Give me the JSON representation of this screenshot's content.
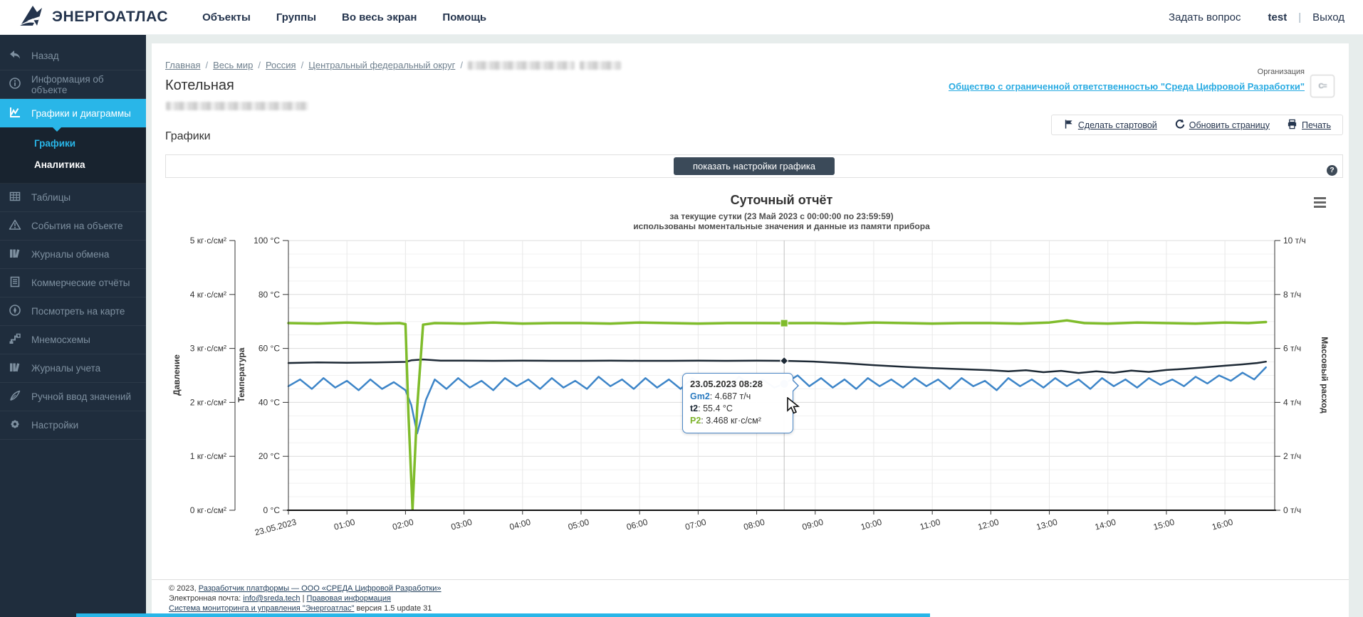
{
  "navbar": {
    "brand": "ЭНЕРГОАТЛАС",
    "menu": [
      {
        "label": "Объекты"
      },
      {
        "label": "Группы"
      },
      {
        "label": "Во весь экран"
      },
      {
        "label": "Помощь"
      }
    ],
    "right": {
      "ask": "Задать вопрос",
      "user": "test",
      "divider": "|",
      "logout": "Выход"
    }
  },
  "sidebar": {
    "items": [
      {
        "label": "Назад",
        "icon": "back-icon"
      },
      {
        "label": "Информация об объекте",
        "icon": "info-icon"
      },
      {
        "label": "Графики и диаграммы",
        "icon": "chart-icon",
        "active": true
      },
      {
        "label": "Таблицы",
        "icon": "table-icon"
      },
      {
        "label": "События на объекте",
        "icon": "warning-icon"
      },
      {
        "label": "Журналы обмена",
        "icon": "books-icon"
      },
      {
        "label": "Коммерческие отчёты",
        "icon": "report-icon"
      },
      {
        "label": "Посмотреть на карте",
        "icon": "compass-icon"
      },
      {
        "label": "Мнемосхемы",
        "icon": "mnemo-icon"
      },
      {
        "label": "Журналы учета",
        "icon": "books-icon"
      },
      {
        "label": "Ручной ввод значений",
        "icon": "pen-icon"
      },
      {
        "label": "Настройки",
        "icon": "gear-icon"
      }
    ],
    "submenu": [
      {
        "label": "Графики",
        "active": true
      },
      {
        "label": "Аналитика"
      }
    ]
  },
  "breadcrumbs": {
    "sep": "/",
    "links": [
      {
        "label": "Главная"
      },
      {
        "label": "Весь мир"
      },
      {
        "label": "Россия"
      },
      {
        "label": "Центральный федеральный округ"
      }
    ]
  },
  "header": {
    "title": "Котельная",
    "org_label": "Организация",
    "org_link": "Общество с ограниченной ответственностью \"Среда Цифровой Разработки\""
  },
  "toolbar": {
    "items": [
      {
        "label": "Сделать стартовой",
        "icon": "flag-icon"
      },
      {
        "label": "Обновить страницу",
        "icon": "refresh-icon"
      },
      {
        "label": "Печать",
        "icon": "print-icon"
      }
    ]
  },
  "graphs": {
    "section_title": "Графики",
    "settings_button": "показать настройки графика",
    "help": "?"
  },
  "chart_data": {
    "type": "line",
    "title": "Суточный отчёт",
    "subtitle1": "за текущие сутки (23 Май 2023 с 00:00:00 по 23:59:59)",
    "subtitle2": "использованы моментальные значения и данные из памяти прибора",
    "grid": true,
    "x_axis": {
      "date_label": "23.05.2023",
      "hour_labels": [
        "01:00",
        "02:00",
        "03:00",
        "04:00",
        "05:00",
        "06:00",
        "07:00",
        "08:00",
        "09:00",
        "10:00",
        "11:00",
        "12:00",
        "13:00",
        "14:00",
        "15:00",
        "16:00"
      ],
      "range_hours": [
        0,
        16.85
      ]
    },
    "y_axes": [
      {
        "id": "pressure",
        "title": "Давление",
        "unit": "кг·с/см²",
        "range": [
          0,
          5
        ],
        "side": "left-outer",
        "ticks": [
          "5 кг·с/см²",
          "4 кг·с/см²",
          "3 кг·с/см²",
          "2 кг·с/см²",
          "1 кг·с/см²",
          "0 кг·с/см²"
        ]
      },
      {
        "id": "temperature",
        "title": "Температура",
        "unit": "°C",
        "range": [
          0,
          100
        ],
        "side": "left",
        "ticks": [
          "100 °C",
          "80 °C",
          "60 °C",
          "40 °C",
          "20 °C",
          "0 °C"
        ]
      },
      {
        "id": "flow",
        "title": "Массовый расход",
        "unit": "т/ч",
        "range": [
          0,
          10
        ],
        "side": "right",
        "ticks": [
          "10 т/ч",
          "8 т/ч",
          "6 т/ч",
          "4 т/ч",
          "2 т/ч",
          "0 т/ч"
        ]
      }
    ],
    "series": [
      {
        "name": "t2",
        "axis": "temperature",
        "color": "#1d2935",
        "width": 2.5,
        "marker": "diamond",
        "data": [
          [
            0,
            54.6
          ],
          [
            0.5,
            54.8
          ],
          [
            1,
            54.7
          ],
          [
            1.5,
            54.8
          ],
          [
            2,
            55.0
          ],
          [
            2.1,
            55.6
          ],
          [
            2.3,
            55.9
          ],
          [
            2.6,
            55.5
          ],
          [
            3,
            55.5
          ],
          [
            3.5,
            55.4
          ],
          [
            4,
            55.5
          ],
          [
            4.5,
            55.4
          ],
          [
            5,
            55.4
          ],
          [
            5.5,
            55.5
          ],
          [
            6,
            55.4
          ],
          [
            6.5,
            55.4
          ],
          [
            7,
            55.5
          ],
          [
            7.5,
            55.4
          ],
          [
            8,
            55.5
          ],
          [
            8.47,
            55.4
          ],
          [
            9,
            55.1
          ],
          [
            9.5,
            54.5
          ],
          [
            10,
            53.8
          ],
          [
            10.5,
            53.2
          ],
          [
            11,
            52.7
          ],
          [
            11.5,
            52.3
          ],
          [
            12,
            51.9
          ],
          [
            12.3,
            51.5
          ],
          [
            12.6,
            51.9
          ],
          [
            12.9,
            51.2
          ],
          [
            13.2,
            51.7
          ],
          [
            13.5,
            50.9
          ],
          [
            13.8,
            51.5
          ],
          [
            14.1,
            51.0
          ],
          [
            14.4,
            51.8
          ],
          [
            14.7,
            51.3
          ],
          [
            15,
            52.0
          ],
          [
            15.3,
            52.4
          ],
          [
            15.6,
            52.9
          ],
          [
            16,
            53.6
          ],
          [
            16.3,
            54.1
          ],
          [
            16.55,
            54.6
          ],
          [
            16.7,
            55.1
          ]
        ]
      },
      {
        "name": "Gm2",
        "axis": "flow",
        "color": "#3d85c8",
        "width": 2.5,
        "marker": "circle",
        "data": [
          [
            0,
            4.6
          ],
          [
            0.2,
            4.85
          ],
          [
            0.4,
            4.5
          ],
          [
            0.6,
            4.9
          ],
          [
            0.8,
            4.55
          ],
          [
            1,
            4.8
          ],
          [
            1.2,
            4.45
          ],
          [
            1.4,
            4.85
          ],
          [
            1.6,
            4.5
          ],
          [
            1.8,
            4.75
          ],
          [
            2,
            4.45
          ],
          [
            2.1,
            3.9
          ],
          [
            2.2,
            2.85
          ],
          [
            2.35,
            4.1
          ],
          [
            2.5,
            4.85
          ],
          [
            2.7,
            4.5
          ],
          [
            2.9,
            4.9
          ],
          [
            3.1,
            4.55
          ],
          [
            3.3,
            4.8
          ],
          [
            3.5,
            4.45
          ],
          [
            3.7,
            4.9
          ],
          [
            3.9,
            4.6
          ],
          [
            4.1,
            4.85
          ],
          [
            4.3,
            4.5
          ],
          [
            4.5,
            4.9
          ],
          [
            4.7,
            4.55
          ],
          [
            4.9,
            4.8
          ],
          [
            5.1,
            4.5
          ],
          [
            5.3,
            4.95
          ],
          [
            5.5,
            4.6
          ],
          [
            5.7,
            4.85
          ],
          [
            5.9,
            4.5
          ],
          [
            6.1,
            4.9
          ],
          [
            6.3,
            4.55
          ],
          [
            6.5,
            4.85
          ],
          [
            6.7,
            4.5
          ],
          [
            6.9,
            4.9
          ],
          [
            7.1,
            4.6
          ],
          [
            7.3,
            4.8
          ],
          [
            7.5,
            4.5
          ],
          [
            7.7,
            4.95
          ],
          [
            7.9,
            4.65
          ],
          [
            8.1,
            4.85
          ],
          [
            8.3,
            4.55
          ],
          [
            8.47,
            4.687
          ],
          [
            8.7,
            5.0
          ],
          [
            8.9,
            4.6
          ],
          [
            9.1,
            4.9
          ],
          [
            9.3,
            4.55
          ],
          [
            9.5,
            4.85
          ],
          [
            9.7,
            4.5
          ],
          [
            9.9,
            4.9
          ],
          [
            10.1,
            4.6
          ],
          [
            10.3,
            4.85
          ],
          [
            10.5,
            4.55
          ],
          [
            10.7,
            4.9
          ],
          [
            10.9,
            4.6
          ],
          [
            11.1,
            4.85
          ],
          [
            11.3,
            4.5
          ],
          [
            11.5,
            4.9
          ],
          [
            11.7,
            4.6
          ],
          [
            11.9,
            4.8
          ],
          [
            12.1,
            4.45
          ],
          [
            12.3,
            4.9
          ],
          [
            12.5,
            4.6
          ],
          [
            12.7,
            4.85
          ],
          [
            12.9,
            4.55
          ],
          [
            13.1,
            4.9
          ],
          [
            13.3,
            4.6
          ],
          [
            13.5,
            4.85
          ],
          [
            13.7,
            4.5
          ],
          [
            13.9,
            4.9
          ],
          [
            14.1,
            4.6
          ],
          [
            14.3,
            4.85
          ],
          [
            14.5,
            4.55
          ],
          [
            14.7,
            4.9
          ],
          [
            14.9,
            4.65
          ],
          [
            15.1,
            4.85
          ],
          [
            15.3,
            4.6
          ],
          [
            15.5,
            4.95
          ],
          [
            15.7,
            4.7
          ],
          [
            15.9,
            5.0
          ],
          [
            16.1,
            4.8
          ],
          [
            16.3,
            5.1
          ],
          [
            16.5,
            4.85
          ],
          [
            16.7,
            5.3
          ]
        ]
      },
      {
        "name": "P2",
        "axis": "pressure",
        "color": "#7fbc2b",
        "width": 3.5,
        "marker": "square",
        "data": [
          [
            0,
            3.47
          ],
          [
            0.5,
            3.46
          ],
          [
            1,
            3.48
          ],
          [
            1.5,
            3.46
          ],
          [
            1.9,
            3.47
          ],
          [
            2,
            3.45
          ],
          [
            2.05,
            1.8
          ],
          [
            2.12,
            0.02
          ],
          [
            2.2,
            1.9
          ],
          [
            2.3,
            3.44
          ],
          [
            2.5,
            3.47
          ],
          [
            3,
            3.46
          ],
          [
            3.5,
            3.48
          ],
          [
            4,
            3.46
          ],
          [
            4.5,
            3.47
          ],
          [
            5,
            3.47
          ],
          [
            5.5,
            3.46
          ],
          [
            6,
            3.48
          ],
          [
            6.5,
            3.47
          ],
          [
            7,
            3.46
          ],
          [
            7.5,
            3.47
          ],
          [
            8,
            3.47
          ],
          [
            8.47,
            3.468
          ],
          [
            9,
            3.47
          ],
          [
            9.5,
            3.46
          ],
          [
            10,
            3.48
          ],
          [
            10.5,
            3.47
          ],
          [
            11,
            3.46
          ],
          [
            11.5,
            3.47
          ],
          [
            12,
            3.47
          ],
          [
            12.5,
            3.46
          ],
          [
            13,
            3.48
          ],
          [
            13.3,
            3.52
          ],
          [
            13.6,
            3.47
          ],
          [
            14,
            3.46
          ],
          [
            14.5,
            3.48
          ],
          [
            15,
            3.47
          ],
          [
            15.5,
            3.46
          ],
          [
            16,
            3.48
          ],
          [
            16.4,
            3.47
          ],
          [
            16.7,
            3.49
          ]
        ]
      }
    ],
    "hover": {
      "time_hours": 8.47,
      "label": "23.05.2023 08:28",
      "sep": ": ",
      "rows": [
        {
          "name": "Gm2",
          "value": "4.687 т/ч",
          "color": "#2b7bc0"
        },
        {
          "name": "t2",
          "value": "55.4 °C",
          "color": "#1d2935"
        },
        {
          "name": "P2",
          "value": "3.468 кг·с/см²",
          "color": "#7cb229"
        }
      ]
    }
  },
  "footer": {
    "copyright_prefix": "© 2023, ",
    "developer_link": "Разработчик платформы — ООО «СРЕДА Цифровой Разработки»",
    "email_label": "Электронная почта: ",
    "email_link": "info@sreda.tech",
    "pipe": "|",
    "legal_link": "Правовая информация",
    "system_link": "Система мониторинга и управления \"Энергоатлас\"",
    "version_suffix": " версия 1.5 update 31"
  }
}
